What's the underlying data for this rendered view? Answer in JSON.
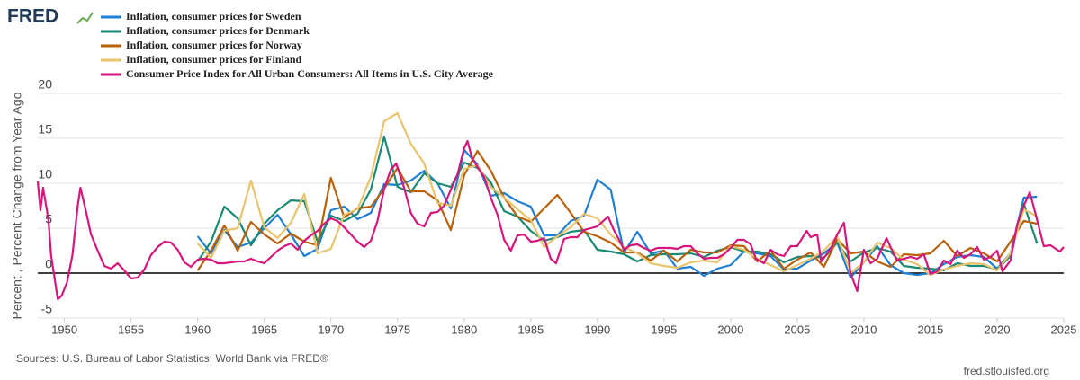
{
  "logo": "FRED",
  "sources": "Sources: U.S. Bureau of Labor Statistics; World Bank via FRED®",
  "site": "fred.stlouisfed.org",
  "chart_data": {
    "type": "line",
    "y_label": "Percent , Percent Change from Year Ago",
    "xlim": [
      1948,
      2025
    ],
    "xticks": [
      1950,
      1955,
      1960,
      1965,
      1970,
      1975,
      1980,
      1985,
      1990,
      1995,
      2000,
      2005,
      2010,
      2015,
      2020,
      2025
    ],
    "ylim": [
      -5,
      20
    ],
    "yticks": [
      -5,
      0,
      5,
      10,
      15,
      20
    ],
    "grid": true,
    "series": [
      {
        "name": "Inflation, consumer prices for Sweden",
        "color": "#1f7fd4",
        "x": [
          1960,
          1961,
          1962,
          1963,
          1964,
          1965,
          1966,
          1967,
          1968,
          1969,
          1970,
          1971,
          1972,
          1973,
          1974,
          1975,
          1976,
          1977,
          1978,
          1979,
          1980,
          1981,
          1982,
          1983,
          1984,
          1985,
          1986,
          1987,
          1988,
          1989,
          1990,
          1991,
          1992,
          1993,
          1994,
          1995,
          1996,
          1997,
          1998,
          1999,
          2000,
          2001,
          2002,
          2003,
          2004,
          2005,
          2006,
          2007,
          2008,
          2009,
          2010,
          2011,
          2012,
          2013,
          2014,
          2015,
          2016,
          2017,
          2018,
          2019,
          2020,
          2021,
          2022,
          2023
        ],
        "values": [
          4.1,
          2.2,
          4.8,
          2.9,
          3.4,
          5.0,
          6.5,
          4.3,
          1.9,
          2.7,
          7.0,
          7.4,
          6.0,
          6.7,
          9.9,
          9.8,
          10.3,
          11.4,
          10.0,
          7.2,
          13.7,
          12.1,
          8.6,
          8.9,
          8.0,
          7.4,
          4.2,
          4.2,
          5.8,
          6.4,
          10.4,
          9.3,
          2.3,
          4.6,
          2.2,
          2.5,
          0.5,
          0.7,
          -0.3,
          0.5,
          0.9,
          2.4,
          2.2,
          1.9,
          0.4,
          0.5,
          1.4,
          2.2,
          3.4,
          -0.5,
          1.2,
          3.0,
          0.9,
          0,
          -0.2,
          0,
          1.0,
          1.8,
          2.0,
          1.8,
          0.5,
          2.2,
          8.4,
          8.5
        ]
      },
      {
        "name": "Inflation, consumer prices for Denmark",
        "color": "#1a8a75",
        "x": [
          1960,
          1961,
          1962,
          1963,
          1964,
          1965,
          1966,
          1967,
          1968,
          1969,
          1970,
          1971,
          1972,
          1973,
          1974,
          1975,
          1976,
          1977,
          1978,
          1979,
          1980,
          1981,
          1982,
          1983,
          1984,
          1985,
          1986,
          1987,
          1988,
          1989,
          1990,
          1991,
          1992,
          1993,
          1994,
          1995,
          1996,
          1997,
          1998,
          1999,
          2000,
          2001,
          2002,
          2003,
          2004,
          2005,
          2006,
          2007,
          2008,
          2009,
          2010,
          2011,
          2012,
          2013,
          2014,
          2015,
          2016,
          2017,
          2018,
          2019,
          2020,
          2021,
          2022,
          2023
        ],
        "values": [
          1.3,
          3.5,
          7.4,
          6.1,
          3.1,
          5.5,
          7.0,
          8.1,
          8.0,
          3.5,
          6.4,
          5.8,
          6.6,
          9.3,
          15.2,
          9.6,
          9.0,
          11.1,
          10.0,
          9.6,
          12.3,
          11.7,
          10.1,
          6.9,
          6.3,
          4.7,
          3.6,
          4.0,
          4.6,
          4.8,
          2.6,
          2.4,
          2.1,
          1.3,
          2.0,
          2.1,
          2.1,
          2.2,
          1.8,
          2.5,
          2.9,
          2.4,
          2.4,
          2.1,
          1.2,
          1.8,
          1.9,
          1.7,
          3.4,
          1.3,
          2.3,
          2.8,
          2.4,
          0.8,
          0.6,
          0.5,
          0.3,
          1.1,
          0.8,
          0.8,
          0.4,
          1.9,
          7.7,
          3.3
        ]
      },
      {
        "name": "Inflation, consumer prices for Norway",
        "color": "#b8610a",
        "x": [
          1960,
          1961,
          1962,
          1963,
          1964,
          1965,
          1966,
          1967,
          1968,
          1969,
          1970,
          1971,
          1972,
          1973,
          1974,
          1975,
          1976,
          1977,
          1978,
          1979,
          1980,
          1981,
          1982,
          1983,
          1984,
          1985,
          1986,
          1987,
          1988,
          1989,
          1990,
          1991,
          1992,
          1993,
          1994,
          1995,
          1996,
          1997,
          1998,
          1999,
          2000,
          2001,
          2002,
          2003,
          2004,
          2005,
          2006,
          2007,
          2008,
          2009,
          2010,
          2011,
          2012,
          2013,
          2014,
          2015,
          2016,
          2017,
          2018,
          2019,
          2020,
          2021,
          2022,
          2023
        ],
        "values": [
          0.3,
          2.5,
          5.3,
          2.5,
          5.7,
          4.3,
          3.3,
          4.4,
          3.5,
          3.1,
          10.6,
          6.2,
          7.2,
          7.4,
          9.4,
          11.7,
          9.1,
          9.1,
          8.1,
          4.8,
          10.9,
          13.6,
          11.4,
          8.4,
          6.3,
          5.7,
          7.2,
          8.7,
          6.7,
          4.6,
          4.1,
          3.4,
          2.3,
          2.3,
          1.4,
          2.5,
          1.3,
          2.6,
          2.3,
          2.3,
          3.1,
          3.0,
          1.3,
          2.5,
          0.5,
          1.5,
          2.3,
          0.7,
          3.8,
          2.2,
          2.4,
          1.3,
          0.7,
          2.1,
          2.0,
          2.2,
          3.6,
          1.9,
          2.8,
          2.2,
          1.3,
          3.5,
          5.8,
          5.5
        ]
      },
      {
        "name": "Inflation, consumer prices for Finland",
        "color": "#e8c46e",
        "x": [
          1960,
          1961,
          1962,
          1963,
          1964,
          1965,
          1966,
          1967,
          1968,
          1969,
          1970,
          1971,
          1972,
          1973,
          1974,
          1975,
          1976,
          1977,
          1978,
          1979,
          1980,
          1981,
          1982,
          1983,
          1984,
          1985,
          1986,
          1987,
          1988,
          1989,
          1990,
          1991,
          1992,
          1993,
          1994,
          1995,
          1996,
          1997,
          1998,
          1999,
          2000,
          2001,
          2002,
          2003,
          2004,
          2005,
          2006,
          2007,
          2008,
          2009,
          2010,
          2011,
          2012,
          2013,
          2014,
          2015,
          2016,
          2017,
          2018,
          2019,
          2020,
          2021,
          2022,
          2023
        ],
        "values": [
          3.3,
          1.7,
          4.7,
          5.0,
          10.3,
          5.1,
          3.9,
          5.6,
          8.8,
          2.2,
          2.7,
          6.5,
          7.1,
          10.7,
          16.9,
          17.8,
          14.4,
          12.2,
          7.8,
          7.5,
          11.6,
          12.0,
          9.6,
          8.4,
          7.1,
          5.9,
          2.9,
          4.1,
          5.1,
          6.6,
          6.1,
          4.3,
          2.9,
          2.2,
          1.1,
          0.8,
          0.6,
          1.2,
          1.4,
          1.2,
          3.0,
          2.6,
          1.6,
          0.9,
          0.2,
          0.9,
          1.6,
          2.5,
          4.1,
          0,
          1.2,
          3.4,
          2.8,
          1.5,
          1.0,
          -0.2,
          0.4,
          0.8,
          1.1,
          1.0,
          0.3,
          2.2,
          7.1,
          6.3
        ]
      },
      {
        "name": "Consumer Price Index for All Urban Consumers: All Items in U.S. City Average",
        "color": "#d6167a",
        "x": [
          1948,
          1948.2,
          1948.4,
          1948.8,
          1949,
          1949.5,
          1949.8,
          1950.2,
          1950.6,
          1951,
          1951.2,
          1951.6,
          1952,
          1952.5,
          1953,
          1953.5,
          1954,
          1954.5,
          1955,
          1955.5,
          1956,
          1956.5,
          1957,
          1957.5,
          1958,
          1958.5,
          1959,
          1959.5,
          1960,
          1960.5,
          1961,
          1961.5,
          1962,
          1962.5,
          1963,
          1963.5,
          1964,
          1964.5,
          1965,
          1965.5,
          1966,
          1966.5,
          1967,
          1967.5,
          1968,
          1968.5,
          1969,
          1969.5,
          1970,
          1970.5,
          1971,
          1971.5,
          1972,
          1972.5,
          1973,
          1973.5,
          1974,
          1974.5,
          1974.9,
          1975.5,
          1976,
          1976.5,
          1977,
          1977.5,
          1978,
          1978.5,
          1979,
          1979.5,
          1980,
          1980.25,
          1980.6,
          1981,
          1981.5,
          1982,
          1982.5,
          1983,
          1983.5,
          1984,
          1984.5,
          1985,
          1985.5,
          1986,
          1986.5,
          1986.9,
          1987.5,
          1988,
          1988.5,
          1989,
          1989.5,
          1990,
          1990.8,
          1991.2,
          1991.6,
          1992,
          1992.5,
          1993,
          1993.5,
          1994,
          1994.5,
          1995,
          1995.5,
          1996,
          1996.5,
          1997,
          1997.5,
          1998,
          1998.5,
          1999,
          1999.5,
          2000,
          2000.5,
          2001,
          2001.5,
          2001.9,
          2002.5,
          2003,
          2003.5,
          2004,
          2004.5,
          2005,
          2005.7,
          2006,
          2006.5,
          2006.8,
          2007.5,
          2008,
          2008.5,
          2009,
          2009.5,
          2010,
          2010.5,
          2011,
          2011.7,
          2012,
          2012.5,
          2013,
          2013.5,
          2014,
          2014.5,
          2015,
          2015.5,
          2016,
          2016.5,
          2017,
          2017.5,
          2018,
          2018.5,
          2019,
          2019.5,
          2020,
          2020.4,
          2021,
          2021.5,
          2022,
          2022.45,
          2022.9,
          2023.5,
          2024,
          2024.7,
          2025
        ],
        "values": [
          10.2,
          7,
          9.5,
          6,
          2,
          -2.9,
          -2.5,
          -1,
          2,
          7.5,
          9.5,
          7,
          4.3,
          2.5,
          0.8,
          0.5,
          1.1,
          0.3,
          -0.6,
          -0.5,
          0.4,
          2.0,
          2.9,
          3.5,
          3.4,
          2.6,
          1.2,
          0.7,
          1.5,
          1.6,
          1.5,
          1.1,
          1.1,
          1.2,
          1.3,
          1.3,
          1.6,
          1.3,
          1.1,
          1.8,
          2.5,
          3.0,
          3.3,
          2.6,
          3.6,
          4.2,
          4.7,
          5.5,
          6.1,
          5.8,
          5.1,
          4.3,
          3.5,
          2.9,
          3.6,
          5.8,
          9.4,
          11.5,
          12.2,
          9.5,
          6.7,
          5.5,
          5.2,
          6.7,
          6.8,
          7.5,
          9.3,
          11.0,
          13.9,
          14.7,
          12.8,
          11.8,
          10.7,
          8.4,
          6.5,
          3.7,
          2.5,
          4.2,
          4.3,
          3.5,
          3.6,
          3.9,
          1.6,
          1.1,
          3.8,
          4.0,
          4.0,
          4.8,
          5.0,
          5.2,
          6.3,
          4.9,
          3.8,
          2.6,
          3.1,
          3.2,
          2.8,
          2.5,
          2.8,
          2.8,
          2.8,
          2.7,
          3.0,
          3.0,
          2.2,
          1.6,
          1.7,
          1.7,
          2.1,
          2.8,
          3.7,
          3.7,
          3.2,
          1.6,
          1.1,
          2.6,
          2.1,
          1.9,
          3.0,
          3.0,
          4.7,
          4.0,
          4.3,
          1.3,
          2.7,
          4.3,
          5.6,
          0.0,
          -2.0,
          2.6,
          1.1,
          1.6,
          3.9,
          2.9,
          1.4,
          1.6,
          1.8,
          1.6,
          2.1,
          -0.1,
          0.2,
          1.4,
          1.0,
          2.5,
          1.7,
          2.1,
          2.9,
          1.5,
          1.8,
          2.5,
          0.2,
          1.4,
          5.4,
          7.5,
          9.0,
          6.5,
          3.0,
          3.1,
          2.4,
          2.9
        ]
      }
    ]
  }
}
